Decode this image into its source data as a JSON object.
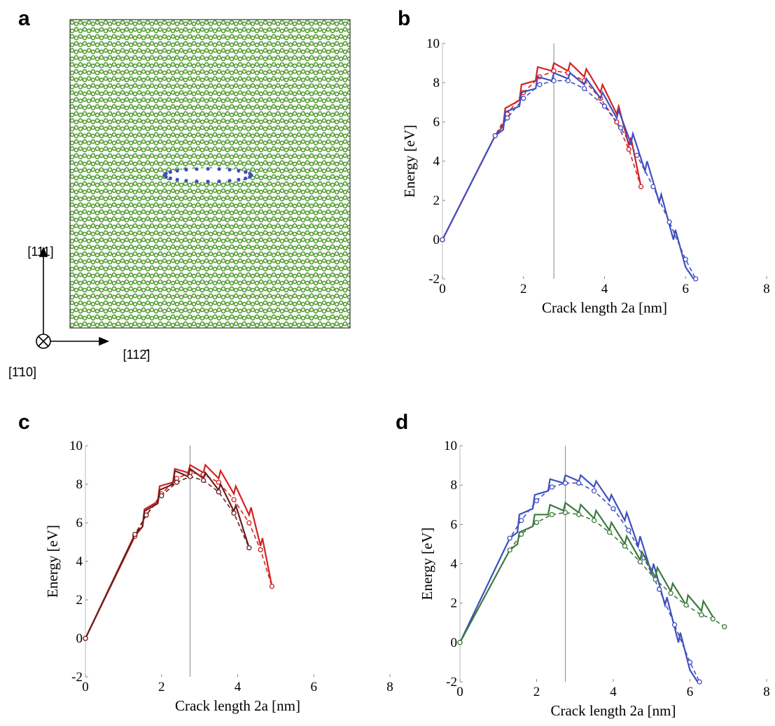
{
  "panel_a": {
    "panel_label": "a",
    "axis_up": "[111]",
    "axis_right": "[112̄]",
    "axis_in": "[1̄10]"
  },
  "chart_data": [
    {
      "type": "line",
      "panel_label": "b",
      "xlabel": "Crack length 2a [nm]",
      "ylabel": "Energy [eV]",
      "xlim": [
        0,
        8
      ],
      "ylim": [
        -2,
        10
      ],
      "xticks": [
        0,
        2,
        4,
        6,
        8
      ],
      "yticks": [
        -2,
        0,
        2,
        4,
        6,
        8,
        10
      ],
      "vline": 2.75,
      "series": [
        {
          "color": "#d42020",
          "style": "solid",
          "x": [
            0,
            1.3,
            1.5,
            1.55,
            1.9,
            1.95,
            2.3,
            2.35,
            2.7,
            2.75,
            3.1,
            3.15,
            3.5,
            3.55,
            3.9,
            3.95,
            4.3,
            4.35,
            4.6,
            4.65,
            4.9
          ],
          "values": [
            0,
            5.3,
            5.8,
            6.7,
            7.1,
            7.9,
            8.1,
            8.8,
            8.6,
            9.0,
            8.6,
            9.0,
            8.3,
            8.7,
            7.5,
            7.9,
            6.4,
            6.8,
            4.8,
            5.2,
            2.7
          ]
        },
        {
          "color": "#d42020",
          "style": "dashed",
          "marker": "circle",
          "x": [
            0,
            1.3,
            1.6,
            2.0,
            2.4,
            2.75,
            3.1,
            3.5,
            3.9,
            4.3,
            4.6,
            4.9
          ],
          "values": [
            0,
            5.3,
            6.4,
            7.5,
            8.3,
            8.6,
            8.5,
            8.1,
            7.2,
            6.0,
            4.6,
            2.7
          ]
        },
        {
          "color": "#3f4fc0",
          "style": "solid",
          "x": [
            0,
            1.3,
            1.5,
            1.55,
            1.9,
            1.95,
            2.3,
            2.35,
            2.7,
            2.75,
            3.1,
            3.15,
            3.5,
            3.55,
            3.9,
            3.95,
            4.3,
            4.35,
            4.65,
            4.7,
            5.0,
            5.05,
            5.35,
            5.4,
            5.7,
            5.75,
            6.0,
            6.2
          ],
          "values": [
            0,
            5.3,
            5.6,
            6.5,
            6.8,
            7.5,
            7.7,
            8.3,
            8.1,
            8.5,
            8.2,
            8.5,
            7.9,
            8.2,
            7.2,
            7.5,
            6.2,
            6.6,
            4.9,
            5.4,
            3.5,
            4.0,
            1.9,
            2.3,
            0.0,
            0.5,
            -1.4,
            -2.0
          ]
        },
        {
          "color": "#3f4fc0",
          "style": "dashed",
          "marker": "circle",
          "x": [
            0,
            1.3,
            1.6,
            2.0,
            2.4,
            2.75,
            3.1,
            3.5,
            4.0,
            4.4,
            4.8,
            5.2,
            5.6,
            6.0,
            6.25
          ],
          "values": [
            0,
            5.3,
            6.2,
            7.2,
            7.9,
            8.1,
            8.1,
            7.7,
            6.8,
            5.7,
            4.3,
            2.7,
            0.9,
            -1.0,
            -2.0
          ]
        }
      ]
    },
    {
      "type": "line",
      "panel_label": "c",
      "xlabel": "Crack length 2a [nm]",
      "ylabel": "Energy [eV]",
      "xlim": [
        0,
        8
      ],
      "ylim": [
        -2,
        10
      ],
      "xticks": [
        0,
        2,
        4,
        6,
        8
      ],
      "yticks": [
        -2,
        0,
        2,
        4,
        6,
        8,
        10
      ],
      "vline": 2.75,
      "series": [
        {
          "color": "#d42020",
          "style": "solid",
          "x": [
            0,
            1.3,
            1.5,
            1.55,
            1.9,
            1.95,
            2.3,
            2.35,
            2.7,
            2.75,
            3.1,
            3.15,
            3.5,
            3.55,
            3.9,
            3.95,
            4.3,
            4.35,
            4.6,
            4.65,
            4.9
          ],
          "values": [
            0,
            5.3,
            5.8,
            6.7,
            7.1,
            7.9,
            8.1,
            8.8,
            8.6,
            9.0,
            8.6,
            9.0,
            8.3,
            8.7,
            7.5,
            7.9,
            6.4,
            6.8,
            4.8,
            5.2,
            2.7
          ]
        },
        {
          "color": "#d42020",
          "style": "dashed",
          "marker": "circle",
          "x": [
            0,
            1.3,
            1.6,
            2.0,
            2.4,
            2.75,
            3.1,
            3.5,
            3.9,
            4.3,
            4.6,
            4.9
          ],
          "values": [
            0,
            5.3,
            6.4,
            7.5,
            8.3,
            8.6,
            8.5,
            8.1,
            7.2,
            6.0,
            4.6,
            2.7
          ]
        },
        {
          "color": "#6b1f1f",
          "style": "solid",
          "x": [
            0,
            1.3,
            1.5,
            1.55,
            1.9,
            1.95,
            2.3,
            2.35,
            2.7,
            2.75,
            3.1,
            3.15,
            3.5,
            3.55,
            3.9,
            3.95,
            4.3
          ],
          "values": [
            0,
            5.4,
            5.8,
            6.6,
            7.0,
            7.7,
            8.0,
            8.7,
            8.4,
            8.8,
            8.3,
            8.6,
            7.7,
            8.0,
            6.6,
            6.9,
            4.7
          ]
        },
        {
          "color": "#6b1f1f",
          "style": "dashed",
          "marker": "circle",
          "x": [
            0,
            1.3,
            1.6,
            2.0,
            2.4,
            2.75,
            3.1,
            3.5,
            3.9,
            4.3
          ],
          "values": [
            0,
            5.4,
            6.4,
            7.4,
            8.1,
            8.4,
            8.2,
            7.6,
            6.5,
            4.7
          ]
        }
      ]
    },
    {
      "type": "line",
      "panel_label": "d",
      "xlabel": "Crack length 2a [nm]",
      "ylabel": "Energy [eV]",
      "xlim": [
        0,
        8
      ],
      "ylim": [
        -2,
        10
      ],
      "xticks": [
        0,
        2,
        4,
        6,
        8
      ],
      "yticks": [
        -2,
        0,
        2,
        4,
        6,
        8,
        10
      ],
      "vline": 2.75,
      "series": [
        {
          "color": "#3f4fc0",
          "style": "solid",
          "x": [
            0,
            1.3,
            1.5,
            1.55,
            1.9,
            1.95,
            2.3,
            2.35,
            2.7,
            2.75,
            3.1,
            3.15,
            3.5,
            3.55,
            3.9,
            3.95,
            4.3,
            4.35,
            4.65,
            4.7,
            5.0,
            5.05,
            5.35,
            5.4,
            5.7,
            5.75,
            6.0,
            6.2
          ],
          "values": [
            0,
            5.3,
            5.6,
            6.5,
            6.8,
            7.5,
            7.7,
            8.3,
            8.1,
            8.5,
            8.2,
            8.5,
            7.9,
            8.2,
            7.2,
            7.5,
            6.2,
            6.6,
            4.9,
            5.4,
            3.5,
            4.0,
            1.9,
            2.3,
            0.0,
            0.5,
            -1.4,
            -2.0
          ]
        },
        {
          "color": "#3f4fc0",
          "style": "dashed",
          "marker": "circle",
          "x": [
            0,
            1.3,
            1.6,
            2.0,
            2.4,
            2.75,
            3.1,
            3.5,
            4.0,
            4.4,
            4.8,
            5.2,
            5.6,
            6.0,
            6.25
          ],
          "values": [
            0,
            5.3,
            6.2,
            7.2,
            7.9,
            8.1,
            8.1,
            7.7,
            6.8,
            5.7,
            4.3,
            2.7,
            0.9,
            -1.0,
            -2.0
          ]
        },
        {
          "color": "#3d7a3d",
          "style": "solid",
          "x": [
            0,
            1.3,
            1.5,
            1.55,
            1.9,
            1.95,
            2.3,
            2.35,
            2.7,
            2.75,
            3.1,
            3.15,
            3.5,
            3.55,
            3.9,
            3.95,
            4.3,
            4.35,
            4.7,
            4.75,
            5.1,
            5.15,
            5.5,
            5.55,
            5.9,
            5.95,
            6.3,
            6.35,
            6.6
          ],
          "values": [
            0,
            4.7,
            5.0,
            5.6,
            5.9,
            6.5,
            6.5,
            7.0,
            6.7,
            7.1,
            6.6,
            7.0,
            6.3,
            6.7,
            5.7,
            6.1,
            5.0,
            5.4,
            4.2,
            4.6,
            3.3,
            3.8,
            2.6,
            3.0,
            1.9,
            2.4,
            1.6,
            2.1,
            1.3
          ]
        },
        {
          "color": "#3d7a3d",
          "style": "dashed",
          "marker": "circle",
          "x": [
            0,
            1.3,
            1.6,
            2.0,
            2.4,
            2.75,
            3.1,
            3.5,
            3.9,
            4.3,
            4.7,
            5.1,
            5.5,
            5.9,
            6.3,
            6.6,
            6.9
          ],
          "values": [
            0,
            4.7,
            5.5,
            6.1,
            6.5,
            6.6,
            6.5,
            6.2,
            5.6,
            4.9,
            4.1,
            3.2,
            2.5,
            1.9,
            1.4,
            1.2,
            0.8
          ]
        }
      ]
    }
  ]
}
